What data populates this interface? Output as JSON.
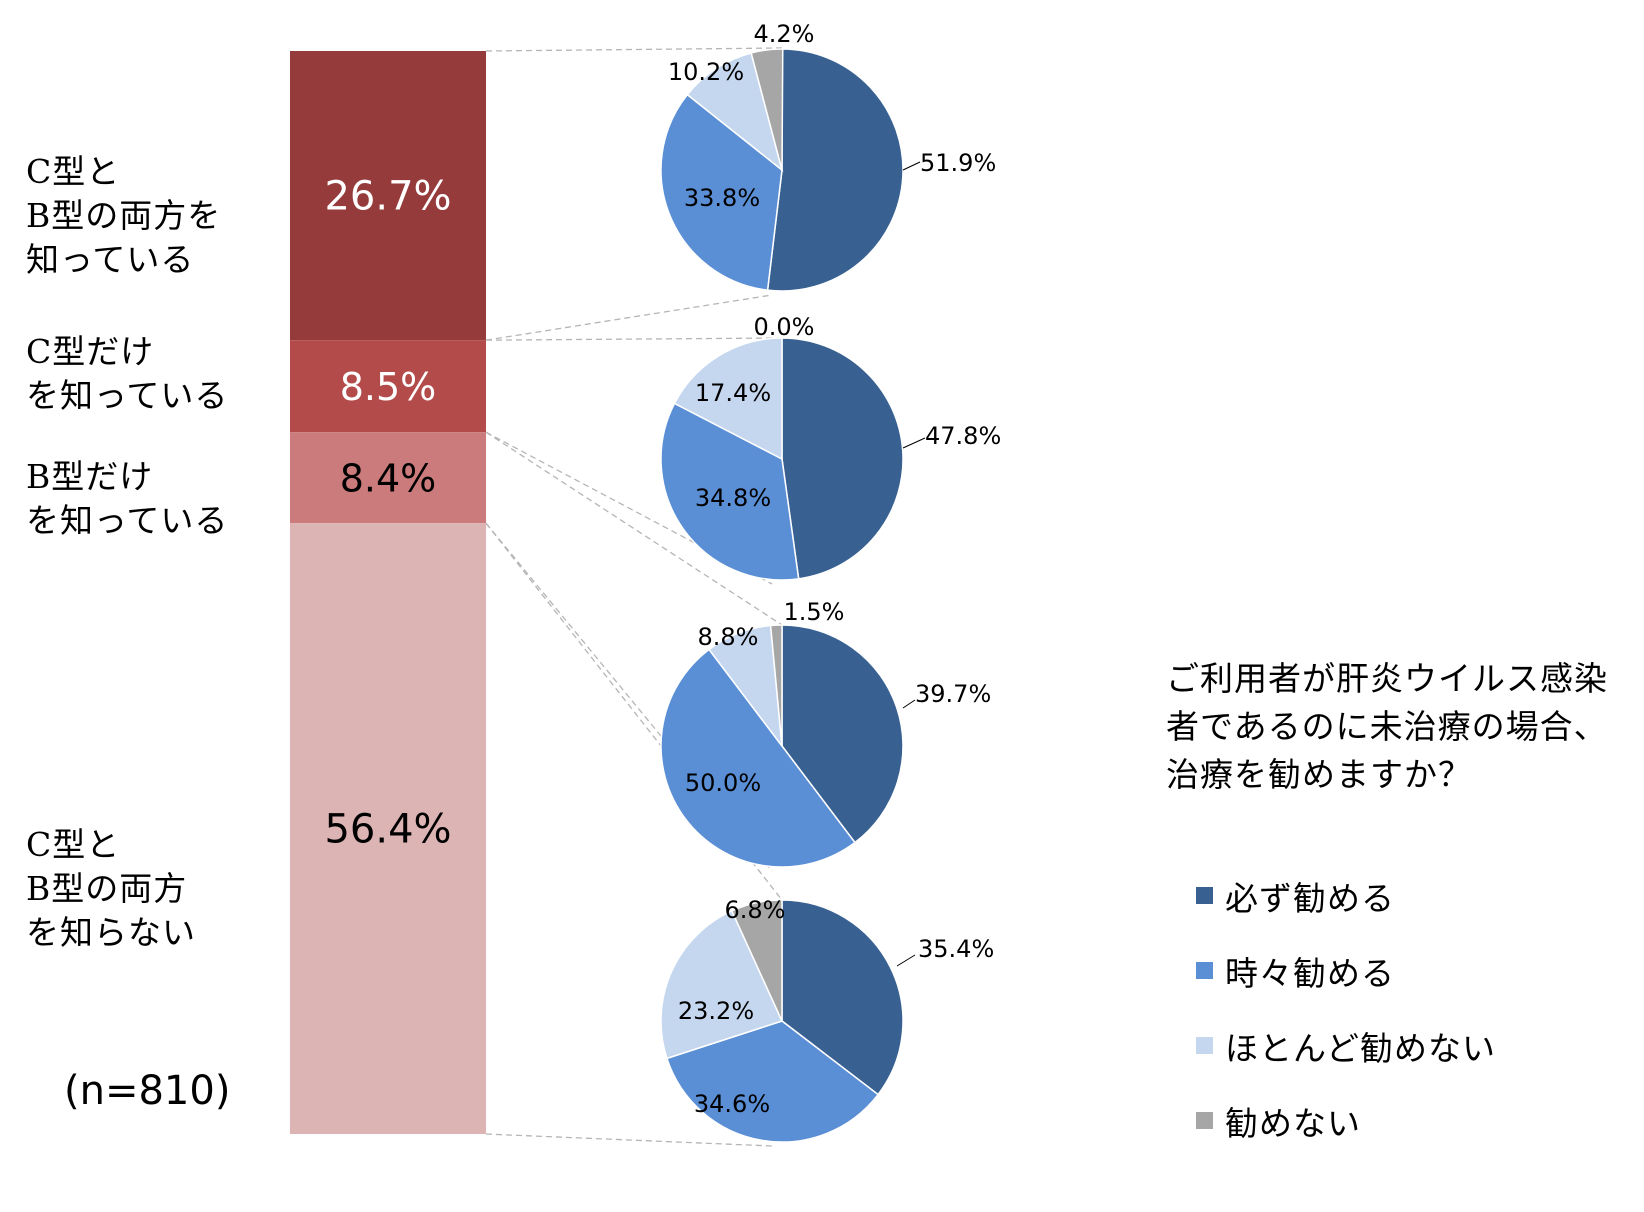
{
  "chart_data": [
    {
      "type": "bar",
      "stacked": true,
      "segments": [
        {
          "label": "C型と\nB型の両方を\n知っている",
          "value": 26.7,
          "value_label": "26.7%",
          "color": "#953B3B"
        },
        {
          "label": "C型だけ\nを知っている",
          "value": 8.5,
          "value_label": "8.5%",
          "color": "#B34B4B"
        },
        {
          "label": "B型だけ\nを知っている",
          "value": 8.4,
          "value_label": "8.4%",
          "color": "#CB7B7B"
        },
        {
          "label": "C型と\nB型の両方\nを知らない",
          "value": 56.4,
          "value_label": "56.4%",
          "color": "#DDB4B4"
        }
      ],
      "note": "(n=810)"
    },
    {
      "type": "pie",
      "group": "C型と\nB型の両方を\n知っている",
      "slices": [
        {
          "name": "必ず勧める",
          "value": 51.9,
          "label": "51.9%"
        },
        {
          "name": "時々勧める",
          "value": 33.8,
          "label": "33.8%"
        },
        {
          "name": "ほとんど勧めない",
          "value": 10.2,
          "label": "10.2%"
        },
        {
          "name": "勧めない",
          "value": 4.2,
          "label": "4.2%"
        }
      ]
    },
    {
      "type": "pie",
      "group": "C型だけ\nを知っている",
      "slices": [
        {
          "name": "必ず勧める",
          "value": 47.8,
          "label": "47.8%"
        },
        {
          "name": "時々勧める",
          "value": 34.8,
          "label": "34.8%"
        },
        {
          "name": "ほとんど勧めない",
          "value": 17.4,
          "label": "17.4%"
        },
        {
          "name": "勧めない",
          "value": 0.0,
          "label": "0.0%"
        }
      ]
    },
    {
      "type": "pie",
      "group": "B型だけ\nを知っている",
      "slices": [
        {
          "name": "必ず勧める",
          "value": 39.7,
          "label": "39.7%"
        },
        {
          "name": "時々勧める",
          "value": 50.0,
          "label": "50.0%"
        },
        {
          "name": "ほとんど勧めない",
          "value": 8.8,
          "label": "8.8%"
        },
        {
          "name": "勧めない",
          "value": 1.5,
          "label": "1.5%"
        }
      ]
    },
    {
      "type": "pie",
      "group": "C型と\nB型の両方\nを知らない",
      "slices": [
        {
          "name": "必ず勧める",
          "value": 35.4,
          "label": "35.4%"
        },
        {
          "name": "時々勧める",
          "value": 34.6,
          "label": "34.6%"
        },
        {
          "name": "ほとんど勧めない",
          "value": 23.2,
          "label": "23.2%"
        },
        {
          "name": "勧めない",
          "value": 6.8,
          "label": "6.8%"
        }
      ]
    }
  ],
  "question": "ご利用者が肝炎ウイルス感染者であるのに未治療の場合、治療を勧めますか？",
  "legend": [
    {
      "name": "必ず勧める",
      "color": "#386192"
    },
    {
      "name": "時々勧める",
      "color": "#5A8FD6"
    },
    {
      "name": "ほとんど勧めない",
      "color": "#C5D6EF"
    },
    {
      "name": "勧めない",
      "color": "#A6A6A6"
    }
  ]
}
